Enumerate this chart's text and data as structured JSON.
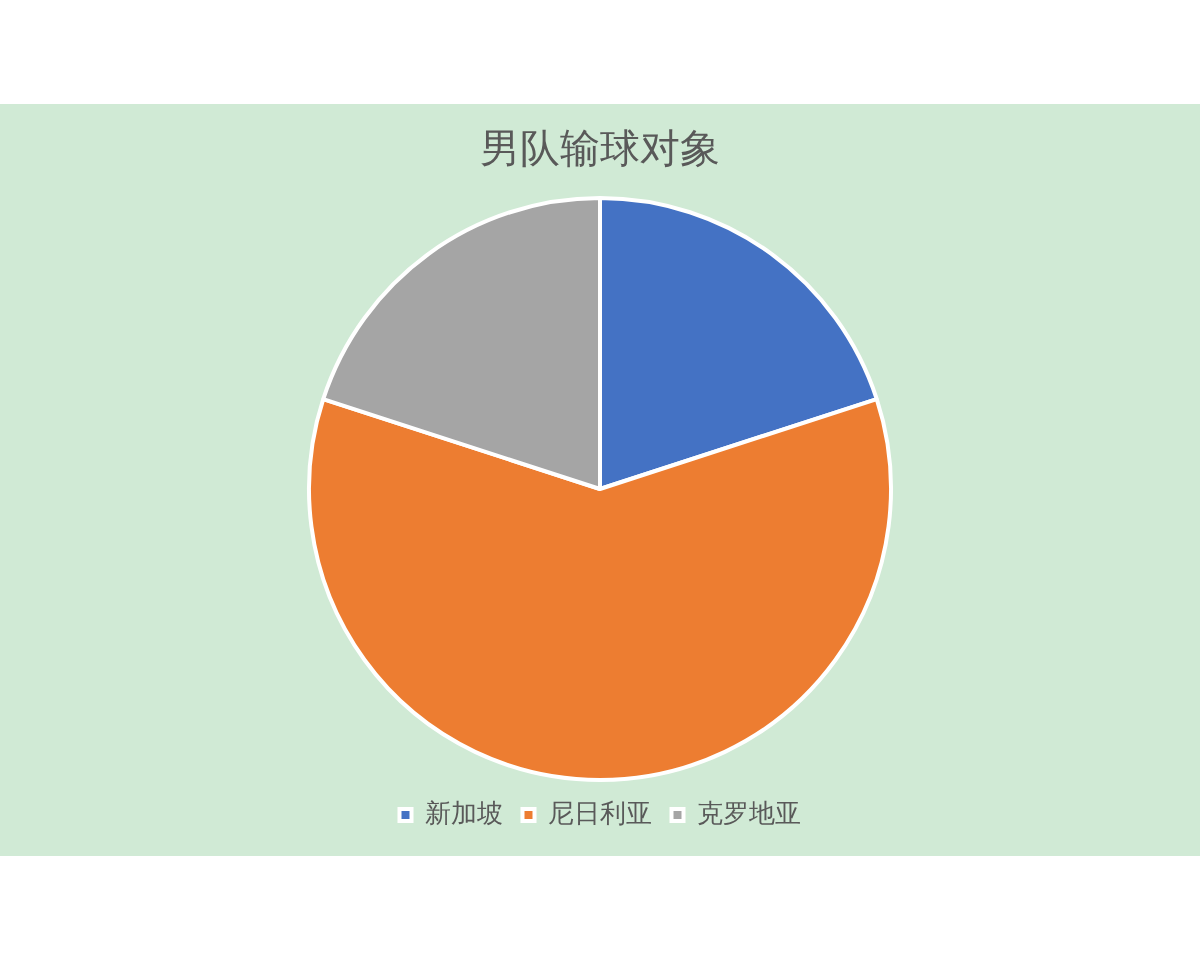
{
  "chart_data": {
    "type": "pie",
    "title": "男队输球对象",
    "categories": [
      "新加坡",
      "尼日利亚",
      "克罗地亚"
    ],
    "values": [
      20,
      60,
      20
    ],
    "colors": [
      "#4472c4",
      "#ed7d31",
      "#a5a5a5"
    ],
    "legend": "bottom"
  }
}
